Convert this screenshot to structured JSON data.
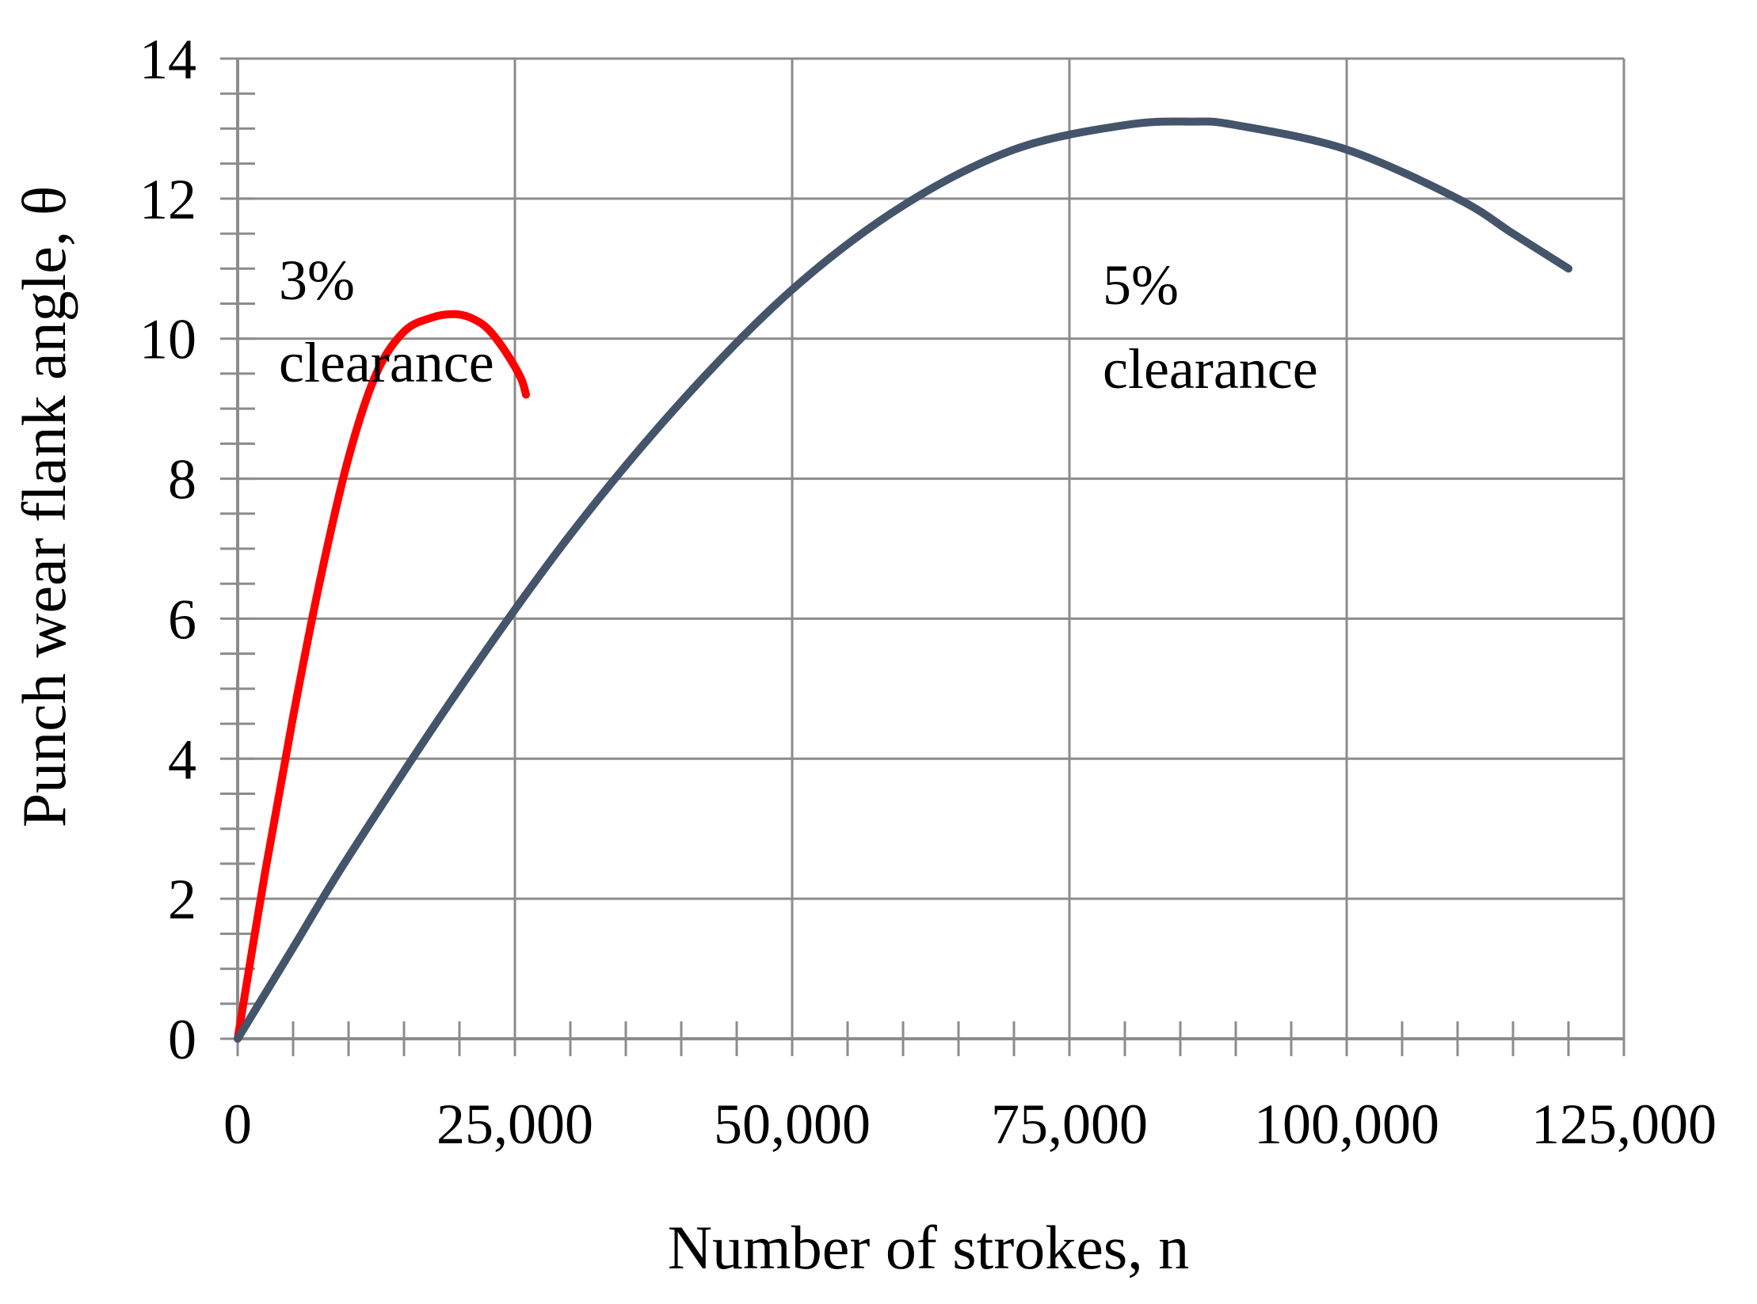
{
  "chart_data": {
    "type": "line",
    "xlabel": "Number of strokes, n",
    "ylabel": "Punch wear  flank angle, θ",
    "xlim": [
      0,
      125000
    ],
    "ylim": [
      0,
      14
    ],
    "x_ticks": [
      0,
      25000,
      50000,
      75000,
      100000,
      125000
    ],
    "x_tick_labels": [
      "0",
      "25,000",
      "50,000",
      "75,000",
      "100,000",
      "125,000"
    ],
    "y_ticks": [
      0,
      2,
      4,
      6,
      8,
      10,
      12,
      14
    ],
    "y_tick_labels": [
      "0",
      "2",
      "4",
      "6",
      "8",
      "10",
      "12",
      "14"
    ],
    "grid": true,
    "series": [
      {
        "color": "#ff0000",
        "x": [
          0,
          2500,
          5000,
          7500,
          10000,
          12500,
          15000,
          17500,
          19500,
          21000,
          22500,
          24000,
          25500,
          26000
        ],
        "y": [
          0,
          2.4,
          4.6,
          6.6,
          8.3,
          9.5,
          10.1,
          10.3,
          10.35,
          10.3,
          10.15,
          9.85,
          9.45,
          9.2
        ]
      },
      {
        "color": "#44546a",
        "x": [
          0,
          5000,
          10000,
          20000,
          30000,
          40000,
          50000,
          60000,
          70000,
          80000,
          86000,
          90000,
          100000,
          110000,
          115000,
          120000
        ],
        "y": [
          0,
          1.3,
          2.6,
          5.0,
          7.2,
          9.1,
          10.7,
          11.9,
          12.7,
          13.05,
          13.1,
          13.05,
          12.7,
          12.0,
          11.5,
          11.0
        ]
      }
    ],
    "annotations": [
      {
        "line1": "3%",
        "line2": "clearance"
      },
      {
        "line1": "5%",
        "line2": "clearance"
      }
    ]
  }
}
